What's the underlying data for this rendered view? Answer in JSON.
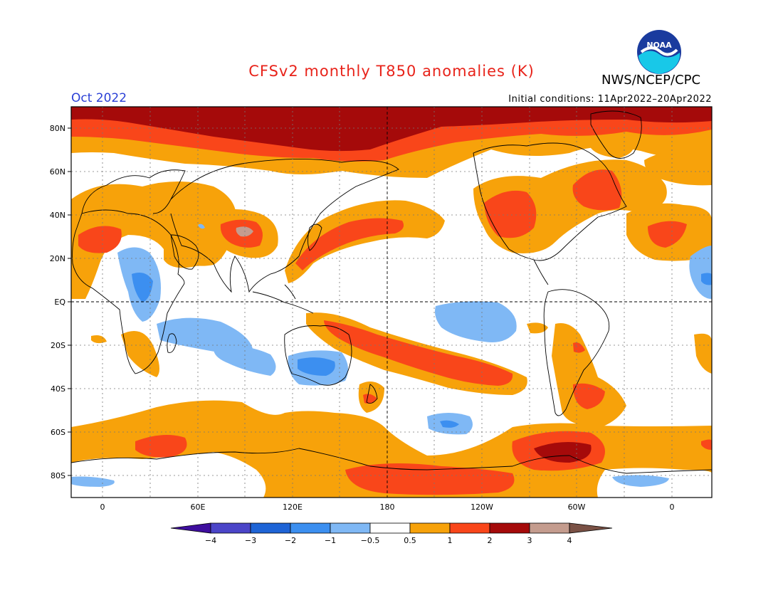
{
  "header": {
    "title": "CFSv2 monthly T850 anomalies (K)",
    "organization": "NWS/NCEP/CPC",
    "month": "Oct 2022",
    "initial_conditions": "Initial conditions: 11Apr2022–20Apr2022"
  },
  "logo": {
    "name": "noaa-logo",
    "text": "NOAA"
  },
  "axes": {
    "lat_labels": [
      "80N",
      "60N",
      "40N",
      "20N",
      "EQ",
      "20S",
      "40S",
      "60S",
      "80S"
    ],
    "lon_labels": [
      "0",
      "60E",
      "120E",
      "180",
      "120W",
      "60W",
      "0"
    ]
  },
  "colorbar": {
    "levels": [
      "−4",
      "−3",
      "−2",
      "−1",
      "−0.5",
      "0.5",
      "1",
      "2",
      "3",
      "4"
    ],
    "colors": [
      "#3e0e9e",
      "#4b45c8",
      "#1e64d6",
      "#3c8ff0",
      "#7fb8f5",
      "#ffffff",
      "#f7a20a",
      "#f9461a",
      "#a50a0a",
      "#c49c8e",
      "#7a5145"
    ]
  },
  "palette": {
    "deep_red": "#a50a0a",
    "red": "#f9461a",
    "orange": "#f7a20a",
    "light_blue": "#7fb8f5",
    "blue": "#3c8ff0",
    "tan": "#c49c8e",
    "title_red": "#e8231a",
    "month_blue": "#2a3fd6"
  }
}
